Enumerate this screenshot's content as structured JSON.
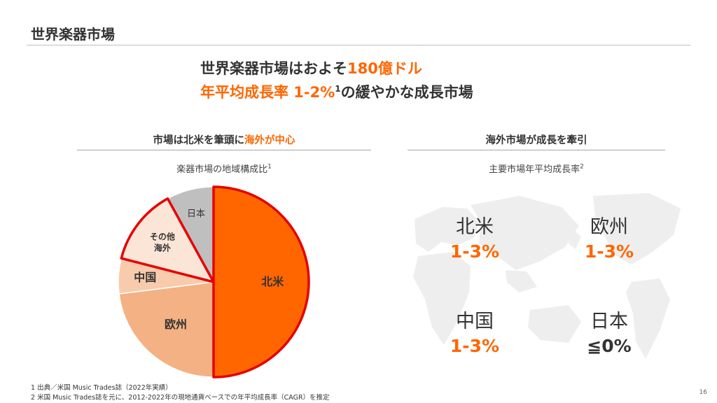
{
  "slide": {
    "title": "世界楽器市場",
    "headline_line1_prefix": "世界楽器市場はおよそ",
    "headline_line1_accent": "180億ドル",
    "headline_line2_accent": "年平均成長率 1-2%",
    "headline_line2_sup": "1",
    "headline_line2_suffix": "の緩やかな成長市場",
    "page_number": "16"
  },
  "left_section": {
    "title_prefix": "市場は北米を筆頭に",
    "title_accent": "海外が中心",
    "subtitle": "楽器市場の地域構成比",
    "subtitle_sup": "1"
  },
  "right_section": {
    "title": "海外市場が成長を牽引",
    "subtitle": "主要市場年平均成長率",
    "subtitle_sup": "2",
    "regions": [
      {
        "name": "北米",
        "value": "1-3%"
      },
      {
        "name": "欧州",
        "value": "1-3%"
      },
      {
        "name": "中国",
        "value": "1-3%"
      },
      {
        "name": "日本",
        "value": "≦0%"
      }
    ]
  },
  "chart_data": {
    "type": "pie",
    "title": "楽器市場の地域構成比",
    "slices": [
      {
        "label": "北米",
        "value": 50,
        "color": "#ff6600"
      },
      {
        "label": "欧州",
        "value": 23,
        "color": "#f4b183"
      },
      {
        "label": "中国",
        "value": 6,
        "color": "#f8cbad"
      },
      {
        "label": "その他\n海外",
        "value": 13,
        "color": "#fbe5d6"
      },
      {
        "label": "日本",
        "value": 8,
        "color": "#bfbfbf"
      }
    ],
    "highlight_outline": "#e60000"
  },
  "footnotes": [
    "1 出典／米国 Music Trades誌（2022年実績）",
    "2 米国 Music Trades誌を元に、2012-2022年の現地通貨ベースでの年平均成長率（CAGR）を推定"
  ]
}
